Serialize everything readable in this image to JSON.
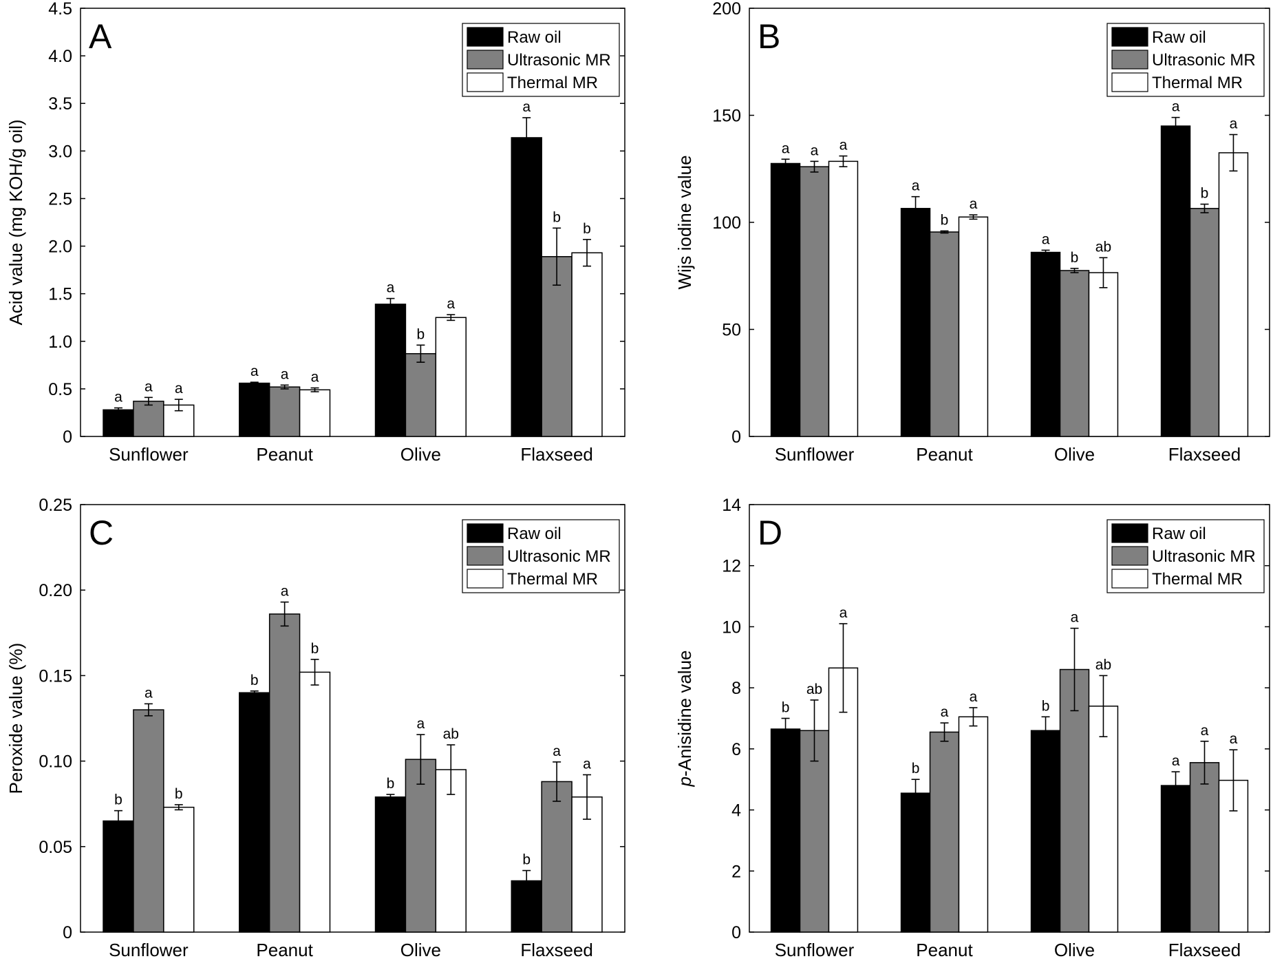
{
  "colors": {
    "raw_oil": "#000000",
    "ultrasonic_mr": "#808080",
    "thermal_mr": "#ffffff",
    "axis": "#000000"
  },
  "legend": [
    "Raw oil",
    "Ultrasonic MR",
    "Thermal MR"
  ],
  "chart_data": [
    {
      "type": "bar",
      "panel": "A",
      "categories": [
        "Sunflower",
        "Peanut",
        "Olive",
        "Flaxseed"
      ],
      "ylabel": "Acid value (mg KOH/g oil)",
      "ylim": [
        0,
        4.5
      ],
      "yticks": [
        "0",
        "0.5",
        "1.0",
        "1.5",
        "2.0",
        "2.5",
        "3.0",
        "3.5",
        "4.0",
        "4.5"
      ],
      "legend_position": "top-right",
      "grid": false,
      "series": [
        {
          "name": "Raw oil",
          "values": [
            0.28,
            0.56,
            1.39,
            3.14
          ],
          "errors": [
            0.02,
            0.01,
            0.06,
            0.21
          ],
          "letters": [
            "a",
            "a",
            "a",
            "a"
          ]
        },
        {
          "name": "Ultrasonic MR",
          "values": [
            0.37,
            0.52,
            0.87,
            1.89
          ],
          "errors": [
            0.04,
            0.02,
            0.09,
            0.3
          ],
          "letters": [
            "a",
            "a",
            "b",
            "b"
          ]
        },
        {
          "name": "Thermal MR",
          "values": [
            0.33,
            0.49,
            1.25,
            1.93
          ],
          "errors": [
            0.06,
            0.02,
            0.03,
            0.14
          ],
          "letters": [
            "a",
            "a",
            "a",
            "b"
          ]
        }
      ]
    },
    {
      "type": "bar",
      "panel": "B",
      "categories": [
        "Sunflower",
        "Peanut",
        "Olive",
        "Flaxseed"
      ],
      "ylabel": "Wijs iodine value",
      "ylim": [
        0,
        200
      ],
      "yticks": [
        "0",
        "50",
        "100",
        "150",
        "200"
      ],
      "legend_position": "top-right",
      "grid": false,
      "series": [
        {
          "name": "Raw oil",
          "values": [
            127.5,
            106.5,
            86,
            145
          ],
          "errors": [
            2,
            5.5,
            1,
            4
          ],
          "letters": [
            "a",
            "a",
            "a",
            "a"
          ]
        },
        {
          "name": "Ultrasonic MR",
          "values": [
            126,
            95.5,
            77.5,
            106.5
          ],
          "errors": [
            2.5,
            0.5,
            1,
            2
          ],
          "letters": [
            "a",
            "b",
            "b",
            "b"
          ]
        },
        {
          "name": "Thermal MR",
          "values": [
            128.5,
            102.5,
            76.5,
            132.5
          ],
          "errors": [
            2.5,
            1,
            7,
            8.5
          ],
          "letters": [
            "a",
            "a",
            "ab",
            "a"
          ]
        }
      ]
    },
    {
      "type": "bar",
      "panel": "C",
      "categories": [
        "Sunflower",
        "Peanut",
        "Olive",
        "Flaxseed"
      ],
      "ylabel": "Peroxide value (%)",
      "ylim": [
        0,
        0.25
      ],
      "yticks": [
        "0",
        "0.05",
        "0.10",
        "0.15",
        "0.20",
        "0.25"
      ],
      "legend_position": "top-right",
      "grid": false,
      "series": [
        {
          "name": "Raw oil",
          "values": [
            0.065,
            0.14,
            0.079,
            0.03
          ],
          "errors": [
            0.006,
            0.001,
            0.0015,
            0.006
          ],
          "letters": [
            "b",
            "b",
            "b",
            "b"
          ]
        },
        {
          "name": "Ultrasonic MR",
          "values": [
            0.13,
            0.186,
            0.101,
            0.088
          ],
          "errors": [
            0.0035,
            0.007,
            0.0145,
            0.0115
          ],
          "letters": [
            "a",
            "a",
            "a",
            "a"
          ]
        },
        {
          "name": "Thermal MR",
          "values": [
            0.073,
            0.152,
            0.095,
            0.079
          ],
          "errors": [
            0.0015,
            0.0075,
            0.0145,
            0.013
          ],
          "letters": [
            "b",
            "b",
            "ab",
            "a"
          ]
        }
      ]
    },
    {
      "type": "bar",
      "panel": "D",
      "categories": [
        "Sunflower",
        "Peanut",
        "Olive",
        "Flaxseed"
      ],
      "ylabel_prefix": "p",
      "ylabel": "-Anisidine value",
      "ylim": [
        0,
        14
      ],
      "yticks": [
        "0",
        "2",
        "4",
        "6",
        "8",
        "10",
        "12",
        "14"
      ],
      "legend_position": "top-right",
      "grid": false,
      "series": [
        {
          "name": "Raw oil",
          "values": [
            6.65,
            4.55,
            6.6,
            4.8
          ],
          "errors": [
            0.35,
            0.45,
            0.45,
            0.45
          ],
          "letters": [
            "b",
            "b",
            "b",
            "a"
          ]
        },
        {
          "name": "Ultrasonic MR",
          "values": [
            6.6,
            6.55,
            8.6,
            5.55
          ],
          "errors": [
            1.0,
            0.3,
            1.35,
            0.7
          ],
          "letters": [
            "ab",
            "a",
            "a",
            "a"
          ]
        },
        {
          "name": "Thermal MR",
          "values": [
            8.65,
            7.05,
            7.4,
            4.97
          ],
          "errors": [
            1.45,
            0.3,
            1.0,
            1.0
          ],
          "letters": [
            "a",
            "a",
            "ab",
            "a"
          ]
        }
      ]
    }
  ]
}
